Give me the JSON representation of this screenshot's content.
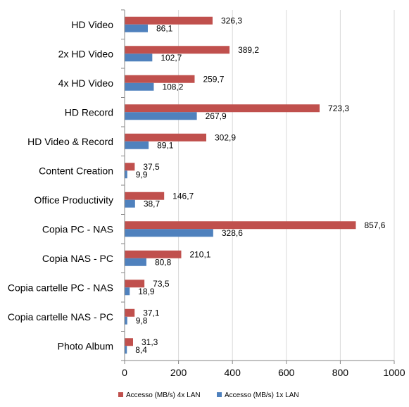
{
  "chart_data": {
    "type": "bar",
    "orientation": "horizontal",
    "categories": [
      "HD Video",
      "2x HD Video",
      "4x HD Video",
      "HD Record",
      "HD Video & Record",
      "Content Creation",
      "Office Productivity",
      "Copia PC - NAS",
      "Copia NAS - PC",
      "Copia cartelle PC - NAS",
      "Copia cartelle NAS - PC",
      "Photo Album"
    ],
    "series": [
      {
        "name": "Accesso (MB/s) 4x LAN",
        "color": "#c0504d",
        "values": [
          326.3,
          389.2,
          259.7,
          723.3,
          302.9,
          37.5,
          146.7,
          857.6,
          210.1,
          73.5,
          37.1,
          31.3
        ],
        "labels": [
          "326,3",
          "389,2",
          "259,7",
          "723,3",
          "302,9",
          "37,5",
          "146,7",
          "857,6",
          "210,1",
          "73,5",
          "37,1",
          "31,3"
        ]
      },
      {
        "name": "Accesso (MB/s) 1x LAN",
        "color": "#4f81bd",
        "values": [
          86.1,
          102.7,
          108.2,
          267.9,
          89.1,
          9.9,
          38.7,
          328.6,
          80.8,
          18.9,
          9.8,
          8.4
        ],
        "labels": [
          "86,1",
          "102,7",
          "108,2",
          "267,9",
          "89,1",
          "9,9",
          "38,7",
          "328,6",
          "80,8",
          "18,9",
          "9,8",
          "8,4"
        ]
      }
    ],
    "xlim": [
      0,
      1000
    ],
    "xticks": [
      "0",
      "200",
      "400",
      "600",
      "800",
      "1000"
    ],
    "grid": true,
    "legend": "bottom",
    "title": "",
    "xlabel": "",
    "ylabel": ""
  }
}
